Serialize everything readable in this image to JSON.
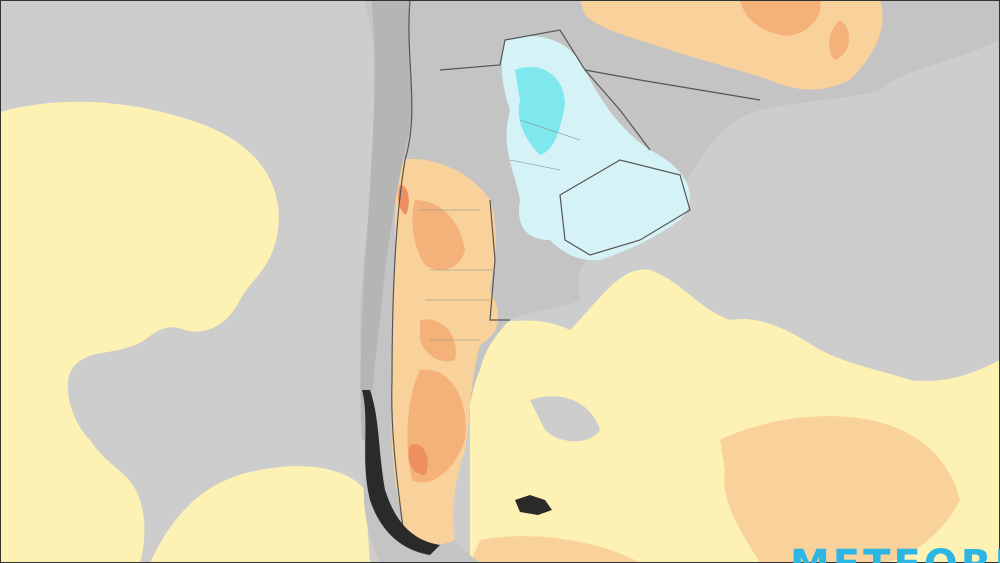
{
  "watermark": "METEORED"
}
